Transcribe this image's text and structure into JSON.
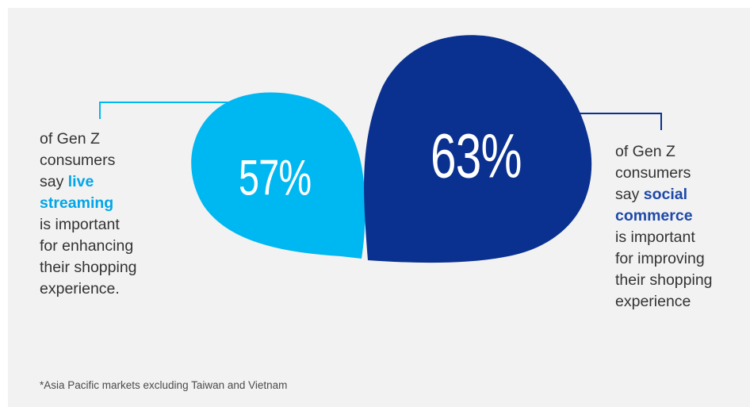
{
  "left_stat": {
    "value": "57%",
    "color": "#00b8f1",
    "lines": [
      {
        "text": "of Gen Z"
      },
      {
        "text": "consumers"
      },
      {
        "prefix": "say ",
        "highlight": "live"
      },
      {
        "highlight": "streaming"
      },
      {
        "text": "is important"
      },
      {
        "text": "for enhancing"
      },
      {
        "text": "their shopping"
      },
      {
        "text": "experience."
      }
    ],
    "highlight_color": "#00a6e8"
  },
  "right_stat": {
    "value": "63%",
    "color": "#0a3190",
    "lines": [
      {
        "text": "of Gen Z"
      },
      {
        "text": "consumers"
      },
      {
        "prefix": "say ",
        "highlight": "social"
      },
      {
        "highlight": "commerce"
      },
      {
        "text": "is important"
      },
      {
        "text": "for improving"
      },
      {
        "text": "their shopping"
      },
      {
        "text": "experience"
      }
    ],
    "highlight_color": "#1e49a8"
  },
  "footnote": "*Asia Pacific markets excluding Taiwan and Vietnam"
}
